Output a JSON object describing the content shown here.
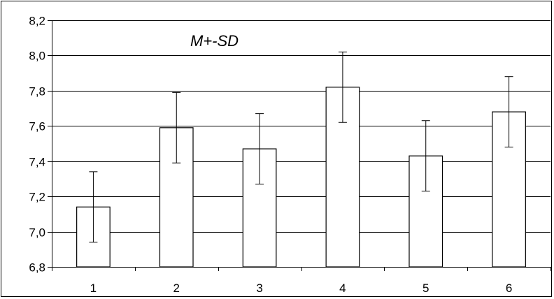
{
  "chart_data": {
    "type": "bar",
    "title": "",
    "xlabel": "",
    "ylabel": "",
    "annotation": "M+-SD",
    "categories": [
      "1",
      "2",
      "3",
      "4",
      "5",
      "6"
    ],
    "values": [
      7.14,
      7.59,
      7.47,
      7.82,
      7.43,
      7.68
    ],
    "sd": [
      0.2,
      0.2,
      0.2,
      0.2,
      0.2,
      0.2
    ],
    "ylim": [
      6.8,
      8.2
    ],
    "yticks": [
      "6,8",
      "7,0",
      "7,2",
      "7,4",
      "7,6",
      "7,8",
      "8,0",
      "8,2"
    ],
    "grid": "horizontal",
    "legend": "none",
    "colors": {
      "bar_fill": "#ffffff",
      "bar_stroke": "#000000",
      "grid": "#000000"
    }
  }
}
